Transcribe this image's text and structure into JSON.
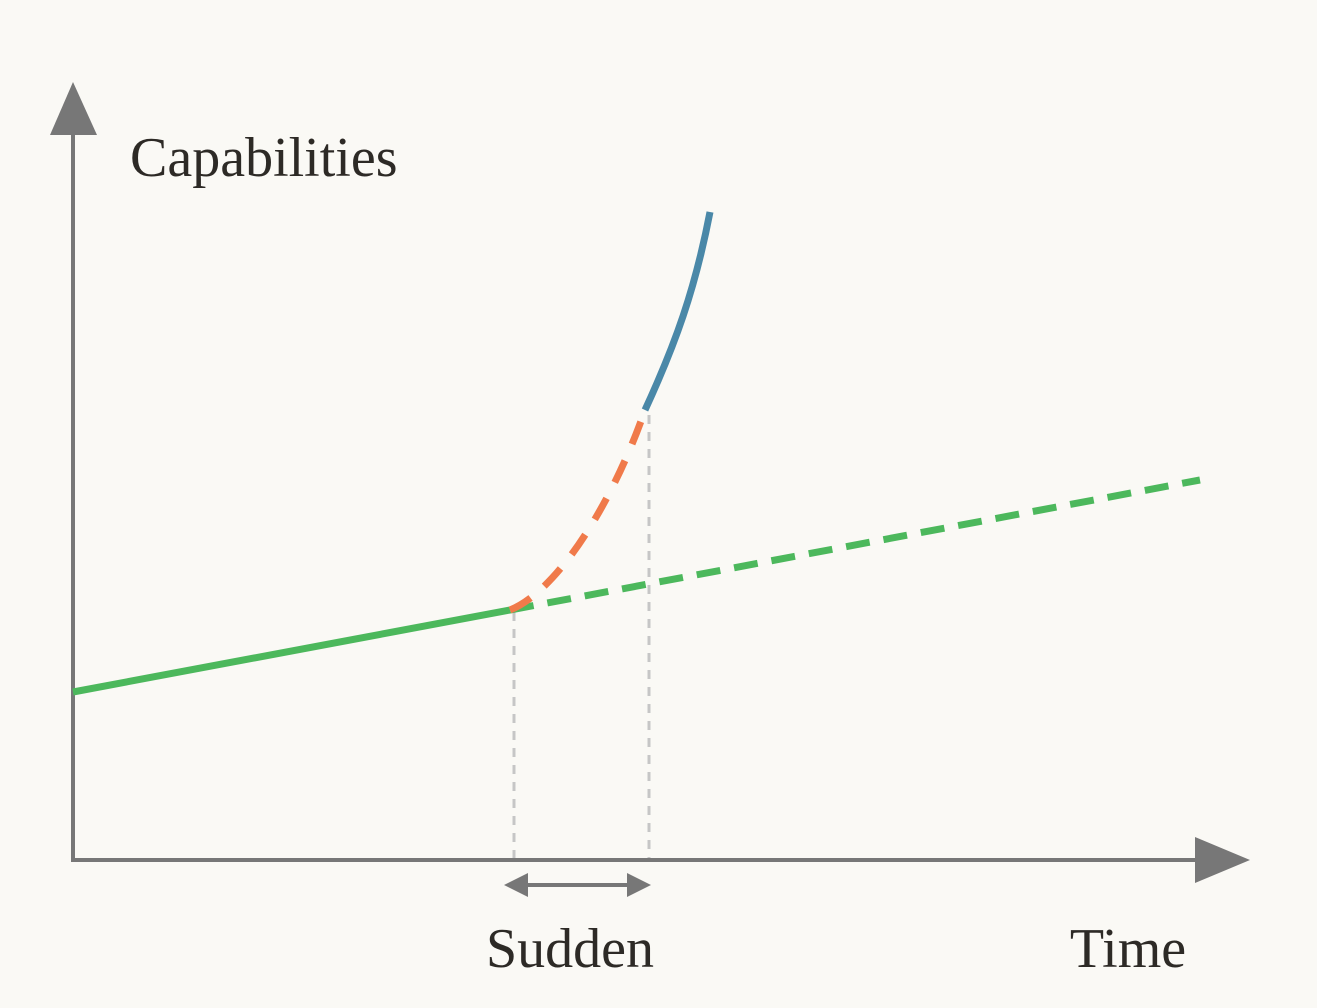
{
  "labels": {
    "y_axis": "Capabilities",
    "x_axis": "Time",
    "interval": "Sudden"
  }
}
